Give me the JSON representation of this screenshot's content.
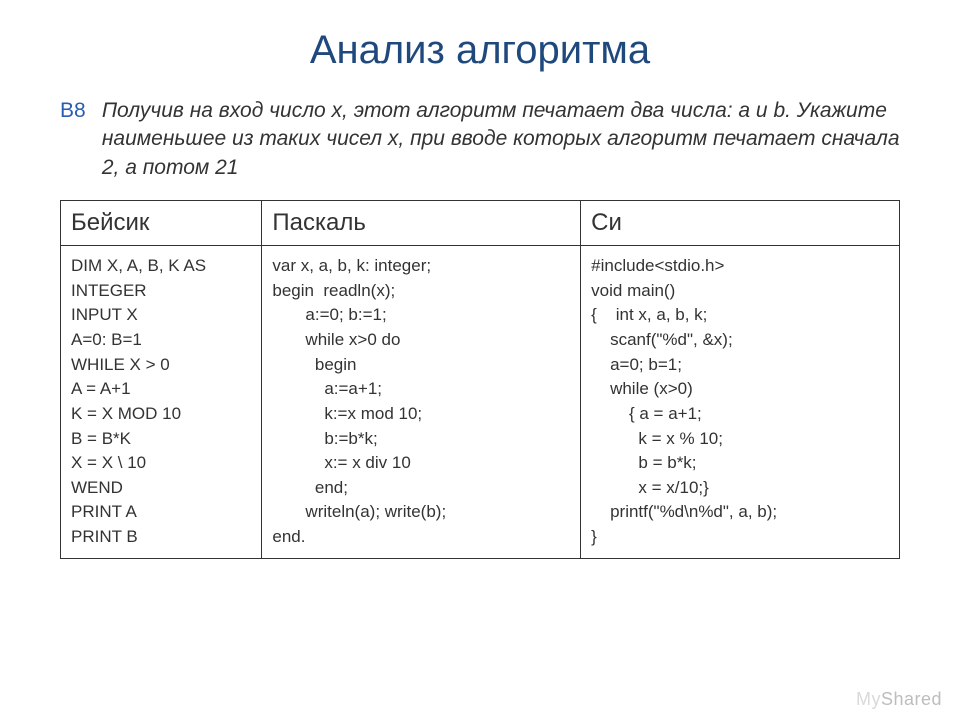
{
  "title": {
    "text": "Анализ алгоритма",
    "color": "#1f497d",
    "fontsize": 40
  },
  "task": {
    "label": "B8",
    "label_color": "#2a5db0",
    "text": "Получив на вход число x, этот алгоритм печатает два числа: a и b. Укажите наименьшее из таких чисел x, при вводе которых алгоритм печатает сначала 2, а потом 21",
    "fontsize": 21,
    "font_style": "italic"
  },
  "table": {
    "border_color": "#333333",
    "header_fontsize": 24,
    "cell_fontsize": 17,
    "columns": [
      {
        "header": "Бейсик",
        "width_pct": 24
      },
      {
        "header": "Паскаль",
        "width_pct": 38
      },
      {
        "header": "Си",
        "width_pct": 38
      }
    ],
    "rows": [
      [
        "DIM X, A, B, K AS INTEGER\nINPUT X\nA=0: B=1\nWHILE X > 0\nA = A+1\nK = X MOD 10\nB = B*K\nX = X \\ 10\nWEND\nPRINT A\nPRINT B",
        "var x, a, b, k: integer;\nbegin  readln(x);\n       a:=0; b:=1;\n       while x>0 do\n         begin\n           a:=a+1;\n           k:=x mod 10;\n           b:=b*k;\n           x:= x div 10\n         end;\n       writeln(a); write(b);\nend.",
        "#include<stdio.h>\nvoid main()\n{    int x, a, b, k;\n    scanf(\"%d\", &x);\n    a=0; b=1;\n    while (x>0)\n        { a = a+1;\n          k = x % 10;\n          b = b*k;\n          x = x/10;}\n    printf(\"%d\\n%d\", a, b);\n}"
      ]
    ]
  },
  "watermark": {
    "prefix": "My",
    "text": "Shared",
    "color_prefix": "#d9d9d9",
    "color_text": "#bdbdbd"
  },
  "background_color": "#ffffff"
}
